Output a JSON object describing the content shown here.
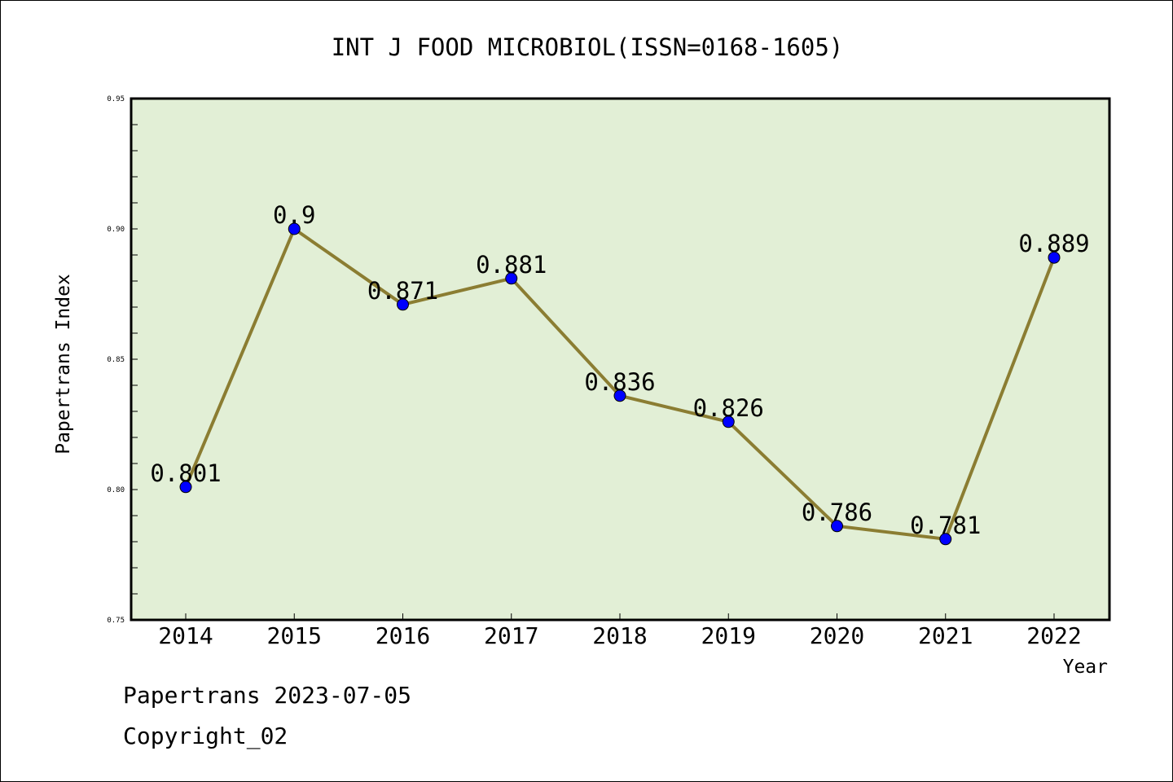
{
  "chart_data": {
    "type": "line",
    "title": "INT J FOOD MICROBIOL(ISSN=0168-1605)",
    "xlabel": "Year",
    "ylabel": "Papertrans Index",
    "categories": [
      "2014",
      "2015",
      "2016",
      "2017",
      "2018",
      "2019",
      "2020",
      "2021",
      "2022"
    ],
    "series": [
      {
        "values": [
          0.801,
          0.9,
          0.871,
          0.881,
          0.836,
          0.826,
          0.786,
          0.781,
          0.889
        ],
        "data_labels": [
          "0.801",
          "0.9",
          "0.871",
          "0.881",
          "0.836",
          "0.826",
          "0.786",
          "0.781",
          "0.889"
        ]
      }
    ],
    "ylim": [
      0.75,
      0.95
    ],
    "yticks": [
      "0.75",
      "0.80",
      "0.85",
      "0.90",
      "0.95"
    ],
    "yticks_values": [
      0.75,
      0.8,
      0.85,
      0.9,
      0.95
    ],
    "grid": false,
    "colors": {
      "plot_background": "#e2efd6",
      "line": "#8b7d32",
      "marker": "#0000ff"
    }
  },
  "footer": {
    "date_text": "Papertrans 2023-07-05",
    "copyright_text": "Copyright_02"
  }
}
